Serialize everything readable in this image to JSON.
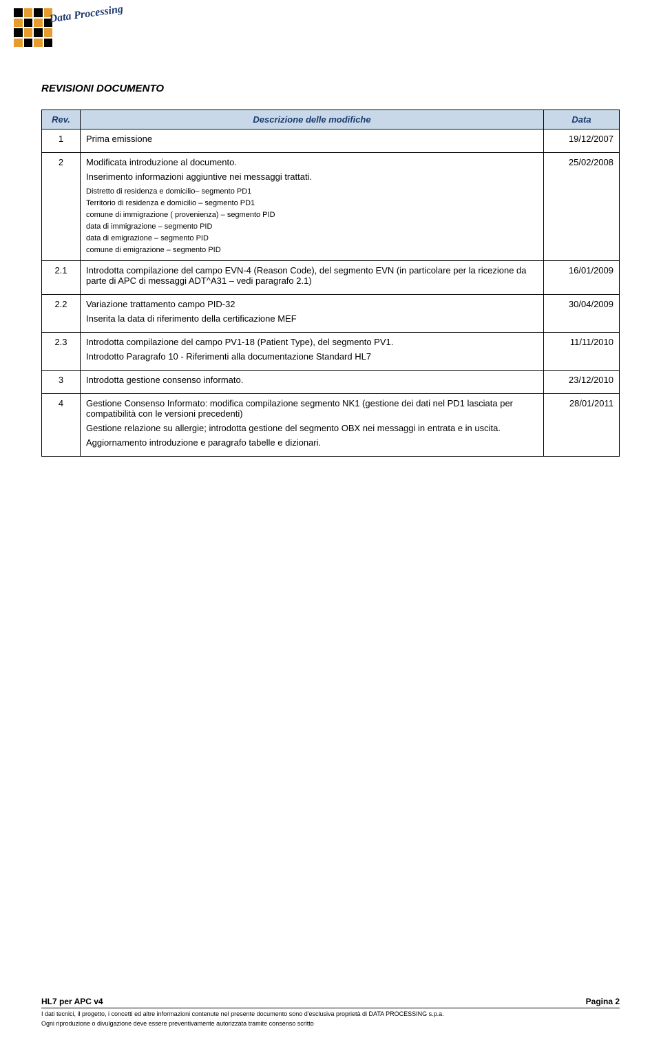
{
  "logo": {
    "text": "Data Processing"
  },
  "doc_title": "REVISIONI DOCUMENTO",
  "table": {
    "headers": {
      "rev": "Rev.",
      "desc": "Descrizione delle modifiche",
      "date": "Data"
    },
    "rows": [
      {
        "rev": "1",
        "date": "19/12/2007",
        "desc_main": "Prima emissione",
        "desc_sub": []
      },
      {
        "rev": "2",
        "date": "25/02/2008",
        "desc_main": "Modificata introduzione al documento.",
        "desc_line2": "Inserimento informazioni aggiuntive nei messaggi  trattati.",
        "desc_sub": [
          "Distretto  di residenza e domicilio– segmento  PD1",
          "Territorio di residenza e domicilio – segmento PD1",
          "comune di immigrazione ( provenienza) – segmento PID",
          "data di immigrazione – segmento PID",
          "data di emigrazione – segmento PID",
          "comune di emigrazione – segmento  PID"
        ]
      },
      {
        "rev": "2.1",
        "date": "16/01/2009",
        "desc_main": "Introdotta compilazione del campo EVN-4 (Reason Code), del segmento EVN  (in particolare per la ricezione da parte di APC di messaggi ADT^A31 – vedi paragrafo 2.1)",
        "desc_sub": []
      },
      {
        "rev": "2.2",
        "date": "30/04/2009",
        "desc_main": "Variazione trattamento campo PID-32",
        "desc_line2": "Inserita  la data di riferimento della certificazione MEF",
        "desc_sub": []
      },
      {
        "rev": "2.3",
        "date": "11/11/2010",
        "desc_main": "Introdotta compilazione del campo PV1-18 (Patient Type), del segmento PV1.",
        "desc_line2": "Introdotto Paragrafo 10 - Riferimenti alla documentazione Standard HL7",
        "desc_sub": []
      },
      {
        "rev": "3",
        "date": "23/12/2010",
        "desc_main": "Introdotta gestione consenso informato.",
        "desc_sub": []
      },
      {
        "rev": "4",
        "date": "28/01/2011",
        "desc_main": "Gestione Consenso Informato: modifica compilazione segmento NK1 (gestione dei dati  nel PD1 lasciata per compatibilità con le versioni precedenti)",
        "desc_line2": "Gestione relazione su allergie; introdotta gestione del segmento OBX nei messaggi in entrata e in uscita.",
        "desc_line3": "Aggiornamento introduzione e paragrafo tabelle e dizionari.",
        "desc_sub": []
      }
    ]
  },
  "footer": {
    "left": "HL7 per APC v4",
    "right": "Pagina 2",
    "line1": "I dati tecnici, il progetto, i concetti ed altre informazioni contenute nel presente documento sono d'esclusiva proprietà di DATA PROCESSING s.p.a.",
    "line2": "Ogni riproduzione o divulgazione deve essere preventivamente autorizzata tramite consenso scritto"
  },
  "styles": {
    "header_bg": "#c8d8e8",
    "header_color": "#1a3a6e",
    "border_color": "#000000",
    "body_font_size": 13,
    "sub_font_size": 11,
    "title_font_size": 15,
    "footer_top_font_size": 12,
    "footer_sub_font_size": 9,
    "logo_orange": "#e69b2e"
  }
}
